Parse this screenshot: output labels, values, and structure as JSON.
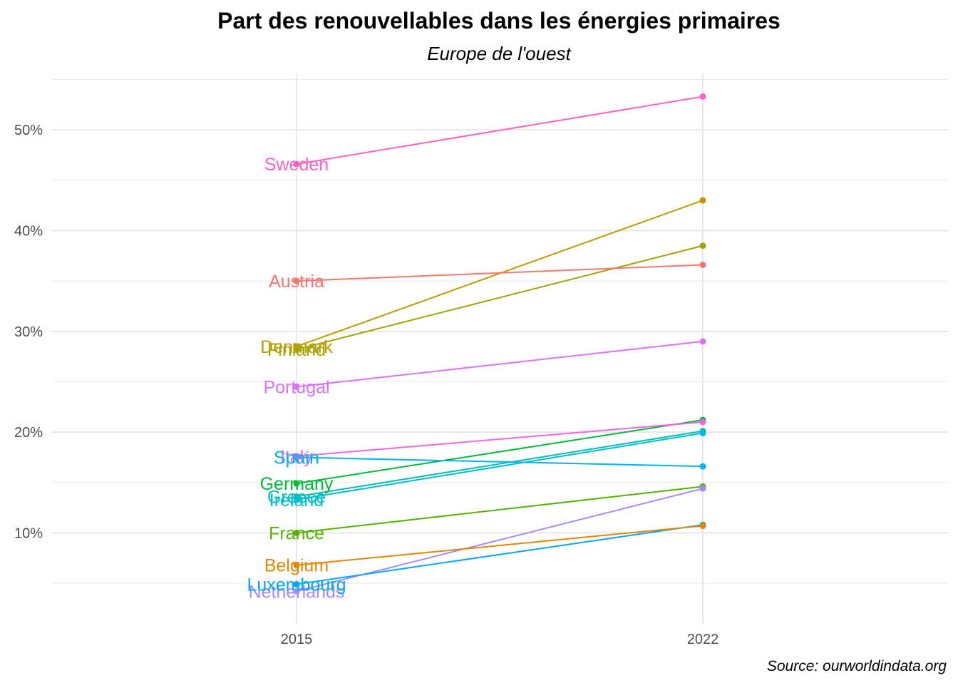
{
  "chart_data": {
    "type": "line",
    "title": "Part des renouvellables dans les énergies primaires",
    "subtitle": "Europe de l'ouest",
    "caption": "Source: ourworldindata.org",
    "xlabel": "",
    "ylabel": "",
    "x": [
      "2015",
      "2022"
    ],
    "y_ticks": [
      "10%",
      "20%",
      "30%",
      "40%",
      "50%"
    ],
    "ylim": [
      0.9,
      55.6
    ],
    "grid": true,
    "legend": "none",
    "series": [
      {
        "name": "Sweden",
        "values": [
          46.6,
          53.3
        ],
        "color": "#FF61C3"
      },
      {
        "name": "Denmark",
        "values": [
          28.5,
          43.0
        ],
        "color": "#C09B00"
      },
      {
        "name": "Finland",
        "values": [
          28.2,
          38.5
        ],
        "color": "#A3A500"
      },
      {
        "name": "Austria",
        "values": [
          35.0,
          36.6
        ],
        "color": "#F8766D"
      },
      {
        "name": "Portugal",
        "values": [
          24.5,
          29.0
        ],
        "color": "#DB72FB"
      },
      {
        "name": "Germany",
        "values": [
          14.9,
          21.2
        ],
        "color": "#00BA38"
      },
      {
        "name": "Italy",
        "values": [
          17.6,
          21.0
        ],
        "color": "#F564E3"
      },
      {
        "name": "Greece",
        "values": [
          13.6,
          20.1
        ],
        "color": "#00C0AF"
      },
      {
        "name": "Ireland",
        "values": [
          13.3,
          19.9
        ],
        "color": "#00BCD8"
      },
      {
        "name": "Spain",
        "values": [
          17.5,
          16.6
        ],
        "color": "#00B4F0"
      },
      {
        "name": "France",
        "values": [
          10.0,
          14.6
        ],
        "color": "#53B400"
      },
      {
        "name": "Netherlands",
        "values": [
          4.2,
          14.4
        ],
        "color": "#A58AFF"
      },
      {
        "name": "Luxembourg",
        "values": [
          4.9,
          10.8
        ],
        "color": "#00A9FF"
      },
      {
        "name": "Belgium",
        "values": [
          6.8,
          10.7
        ],
        "color": "#E58700"
      }
    ]
  }
}
